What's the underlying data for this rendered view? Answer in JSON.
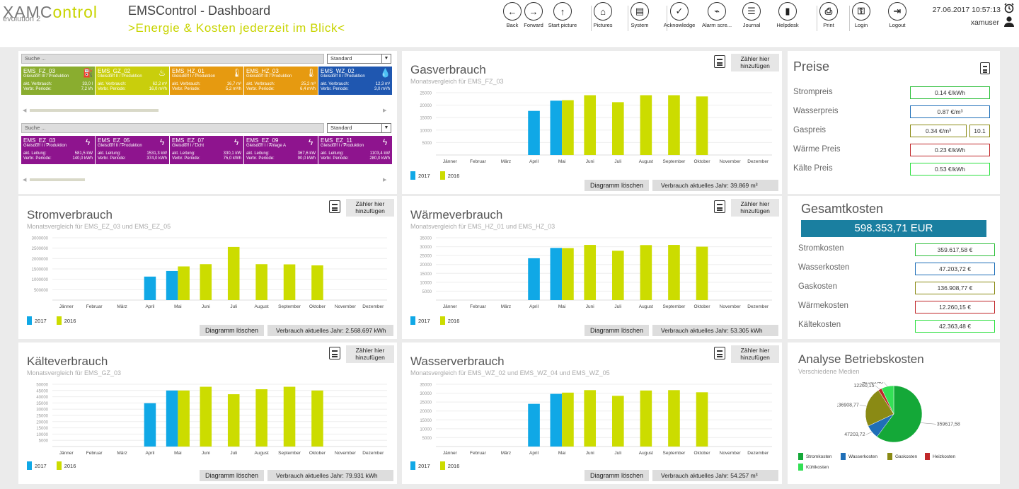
{
  "header": {
    "logo_a": "XAMC",
    "logo_b": "ontrol",
    "logo_sub": "evolution 2",
    "title": "EMSControl - Dashboard",
    "subtitle": ">Energie & Kosten jederzeit im Blick<",
    "datetime": "27.06.2017 10:57:13",
    "user": "xamuser",
    "toolbar": [
      {
        "label": "Back",
        "icon": "arrow-left-icon",
        "glyph": "←",
        "x": 710
      },
      {
        "label": "Forward",
        "icon": "arrow-right-icon",
        "glyph": "→",
        "x": 740
      },
      {
        "label": "Start picture",
        "icon": "arrow-up-icon",
        "glyph": "↑",
        "x": 781
      },
      {
        "label": "Pictures",
        "icon": "home-icon",
        "glyph": "⌂",
        "x": 838
      },
      {
        "label": "System",
        "icon": "system-icon",
        "glyph": "▤",
        "x": 890
      },
      {
        "label": "Acknowledge",
        "icon": "check-icon",
        "glyph": "✓",
        "x": 946
      },
      {
        "label": "Alarm scre...",
        "icon": "pulse-icon",
        "glyph": "⌁",
        "x": 999
      },
      {
        "label": "Journal",
        "icon": "journal-icon",
        "glyph": "☰",
        "x": 1048
      },
      {
        "label": "Helpdesk",
        "icon": "book-icon",
        "glyph": "▮",
        "x": 1099
      },
      {
        "label": "Print",
        "icon": "printer-icon",
        "glyph": "⎙",
        "x": 1157
      },
      {
        "label": "Login",
        "icon": "key-icon",
        "glyph": "⚿",
        "x": 1203
      },
      {
        "label": "Logout",
        "icon": "logout-icon",
        "glyph": "⇥",
        "x": 1254
      }
    ]
  },
  "meters": {
    "search_placeholder": "Suche ...",
    "select_value": "Standard",
    "row1": [
      {
        "name": "EMS_FZ_03",
        "loc": "Gleisdorf III / Produktion",
        "l1": "akt. Verbrauch:",
        "v1": "33,0 l",
        "l2": "Verbr. Periode:",
        "v2": "7,2 l/h",
        "color": "#8aad2f",
        "icon": "fuel-icon",
        "glyph": "⛽"
      },
      {
        "name": "EMS_GZ_02",
        "loc": "Gleisdorf II / Produktion",
        "l1": "akt. Verbrauch:",
        "v1": "62,2 m³",
        "l2": "Verbr. Periode:",
        "v2": "16,0 m³/h",
        "color": "#c9ce0c",
        "icon": "flame-icon",
        "glyph": "♨"
      },
      {
        "name": "EMS_HZ_01",
        "loc": "Gleisdorf I / Produktion",
        "l1": "akt. Verbrauch:",
        "v1": "16,7 m³",
        "l2": "Verbr. Periode:",
        "v2": "5,2 m³/h",
        "color": "#e69a10",
        "icon": "thermometer-icon",
        "glyph": "🌡"
      },
      {
        "name": "EMS_HZ_03",
        "loc": "Gleisdorf III / Produktion",
        "l1": "akt. Verbrauch:",
        "v1": "25,2 m³",
        "l2": "Verbr. Periode:",
        "v2": "6,4 m³/h",
        "color": "#e69a10",
        "icon": "thermometer-icon",
        "glyph": "🌡"
      },
      {
        "name": "EMS_WZ_02",
        "loc": "Gleisdorf II / Produktion",
        "l1": "akt. Verbrauch:",
        "v1": "12,3 m³",
        "l2": "Verbr. Periode:",
        "v2": "3,0 m³/h",
        "color": "#1f57b0",
        "icon": "droplet-icon",
        "glyph": "💧"
      }
    ],
    "row2": [
      {
        "name": "EMS_EZ_03",
        "loc": "Gleisdorf I / Produktion",
        "l1": "akt. Leitung:",
        "v1": "581,5 kW",
        "l2": "Verbr. Periode:",
        "v2": "140,0 kWh",
        "color": "#8e148e",
        "icon": "plug-icon",
        "glyph": "ϟ"
      },
      {
        "name": "EMS_EZ_05",
        "loc": "Gleisdorf II / Produktion",
        "l1": "akt. Leitung:",
        "v1": "1531,3 kW",
        "l2": "Verbr. Periode:",
        "v2": "374,0 kWh",
        "color": "#8e148e",
        "icon": "plug-icon",
        "glyph": "ϟ"
      },
      {
        "name": "EMS_EZ_07",
        "loc": "Gleisdorf I / Licht",
        "l1": "akt. Leitung:",
        "v1": "330,1 kW",
        "l2": "Verbr. Periode:",
        "v2": "75,0 kWh",
        "color": "#8e148e",
        "icon": "plug-icon",
        "glyph": "ϟ"
      },
      {
        "name": "EMS_EZ_09",
        "loc": "Gleisdorf I / Anlage A",
        "l1": "akt. Leitung:",
        "v1": "367,6 kW",
        "l2": "Verbr. Periode:",
        "v2": "90,0 kWh",
        "color": "#8e148e",
        "icon": "plug-icon",
        "glyph": "ϟ"
      },
      {
        "name": "EMS_EZ_11",
        "loc": "Gleisdorf I / Produktion",
        "l1": "akt. Leitung:",
        "v1": "1103,4 kW",
        "l2": "Verbr. Periode:",
        "v2": "280,0 kWh",
        "color": "#8e148e",
        "icon": "plug-icon",
        "glyph": "ϟ"
      }
    ]
  },
  "common": {
    "add_counter": "Zähler hier hinzufügen",
    "delete_chart": "Diagramm löschen",
    "legend_2017": "2017",
    "legend_2016": "2016",
    "color_2017": "#10a8e6",
    "color_2016": "#ccdc00",
    "months": [
      "Jänner",
      "Februar",
      "März",
      "April",
      "Mai",
      "Juni",
      "Juli",
      "August",
      "September",
      "Oktober",
      "November",
      "Dezember"
    ]
  },
  "charts": [
    {
      "key": "gas",
      "title": "Gasverbrauch",
      "subtitle": "Monatsvergleich für EMS_FZ_03",
      "footer": "Verbrauch aktuelles Jahr:  39.869 m³",
      "chart_data": {
        "type": "bar",
        "ylim": [
          0,
          25000
        ],
        "yticks": [
          5000,
          10000,
          15000,
          20000,
          25000
        ],
        "series": [
          {
            "name": "2017",
            "values": [
              null,
              null,
              null,
              17700,
              21800,
              null,
              null,
              null,
              null,
              null,
              null,
              null
            ]
          },
          {
            "name": "2016",
            "values": [
              null,
              null,
              null,
              null,
              22000,
              24000,
              21200,
              24000,
              24000,
              23500,
              null,
              null
            ]
          }
        ]
      }
    },
    {
      "key": "strom",
      "title": "Stromverbrauch",
      "subtitle": "Monatsvergleich für EMS_EZ_03 und EMS_EZ_05",
      "footer": "Verbrauch aktuelles Jahr: 2.568.697 kWh",
      "chart_data": {
        "type": "bar",
        "ylim": [
          0,
          3000000
        ],
        "yticks": [
          500000,
          1000000,
          1500000,
          2000000,
          2500000,
          3000000
        ],
        "series": [
          {
            "name": "2017",
            "values": [
              null,
              null,
              null,
              1130000,
              1400000,
              null,
              null,
              null,
              null,
              null,
              null,
              null
            ]
          },
          {
            "name": "2016",
            "values": [
              null,
              null,
              null,
              null,
              1620000,
              1730000,
              2560000,
              1730000,
              1720000,
              1670000,
              null,
              null
            ]
          }
        ]
      }
    },
    {
      "key": "waerme",
      "title": "Wärmeverbrauch",
      "subtitle": "Monatsvergleich für EMS_HZ_01 und EMS_HZ_03",
      "footer": "Verbrauch aktuelles Jahr:  53.305 kWh",
      "chart_data": {
        "type": "bar",
        "ylim": [
          0,
          35000
        ],
        "yticks": [
          5000,
          10000,
          15000,
          20000,
          25000,
          30000,
          35000
        ],
        "series": [
          {
            "name": "2017",
            "values": [
              null,
              null,
              null,
              23500,
              29300,
              null,
              null,
              null,
              null,
              null,
              null,
              null
            ]
          },
          {
            "name": "2016",
            "values": [
              null,
              null,
              null,
              null,
              29200,
              31000,
              27700,
              30900,
              31000,
              30000,
              null,
              null
            ]
          }
        ]
      }
    },
    {
      "key": "kaelte",
      "title": "Kälteverbrauch",
      "subtitle": "Monatsvergleich für EMS_GZ_03",
      "footer": "Verbrauch aktuelles Jahr:  79.931 kWh",
      "chart_data": {
        "type": "bar",
        "ylim": [
          0,
          50000
        ],
        "yticks": [
          5000,
          10000,
          15000,
          20000,
          25000,
          30000,
          35000,
          40000,
          45000,
          50000
        ],
        "series": [
          {
            "name": "2017",
            "values": [
              null,
              null,
              null,
              34800,
              45000,
              null,
              null,
              null,
              null,
              null,
              null,
              null
            ]
          },
          {
            "name": "2016",
            "values": [
              null,
              null,
              null,
              null,
              45000,
              48000,
              42000,
              46000,
              48000,
              45000,
              null,
              null
            ]
          }
        ]
      }
    },
    {
      "key": "wasser",
      "title": "Wasserverbrauch",
      "subtitle": "Monatsvergleich für EMS_WZ_02 und EMS_WZ_04 und EMS_WZ_05",
      "footer": "Verbrauch aktuelles Jahr:  54.257 m³",
      "chart_data": {
        "type": "bar",
        "ylim": [
          0,
          35000
        ],
        "yticks": [
          5000,
          10000,
          15000,
          20000,
          25000,
          30000,
          35000
        ],
        "series": [
          {
            "name": "2017",
            "values": [
              null,
              null,
              null,
              24000,
              29600,
              null,
              null,
              null,
              null,
              null,
              null,
              null
            ]
          },
          {
            "name": "2016",
            "values": [
              null,
              null,
              null,
              null,
              30300,
              31700,
              28500,
              31500,
              31700,
              30500,
              null,
              null
            ]
          }
        ]
      }
    }
  ],
  "preise": {
    "title": "Preise",
    "items": [
      {
        "label": "Strompreis",
        "value": "0.14 €/kWh",
        "color": "#2dbf3a"
      },
      {
        "label": "Wasserpreis",
        "value": "0.87 €/m³",
        "color": "#1f6fb8"
      },
      {
        "label": "Gaspreis",
        "value": "0.34 €/m³",
        "extra": "10.1",
        "color": "#8a8a14"
      },
      {
        "label": "Wärme Preis",
        "value": "0.23 €/kWh",
        "color": "#c0282a"
      },
      {
        "label": "Kälte Preis",
        "value": "0.53 €/kWh",
        "color": "#2de040"
      }
    ]
  },
  "gesamt": {
    "title": "Gesamtkosten",
    "total": "598.353,71 EUR",
    "items": [
      {
        "label": "Stromkosten",
        "value": "359.617,58 €",
        "color": "#2dbf3a"
      },
      {
        "label": "Wasserkosten",
        "value": "47.203,72 €",
        "color": "#1f6fb8"
      },
      {
        "label": "Gaskosten",
        "value": "136.908,77 €",
        "color": "#8a8a14"
      },
      {
        "label": "Wärmekosten",
        "value": "12.260,15 €",
        "color": "#c0282a"
      },
      {
        "label": "Kältekosten",
        "value": "42.363,48 €",
        "color": "#2de040"
      }
    ]
  },
  "analyse": {
    "title": "Analyse Betriebskosten",
    "subtitle": "Verschiedene Medien",
    "chart_data": {
      "type": "pie",
      "slices": [
        {
          "name": "Stromkosten",
          "value": 359617.58,
          "label": "359617,58",
          "color": "#14a838"
        },
        {
          "name": "Wasserkosten",
          "value": 47203.72,
          "label": "47203,72",
          "color": "#1f6fb8"
        },
        {
          "name": "Gaskosten",
          "value": 136908.77,
          "label": "136908,77",
          "color": "#8a8a14"
        },
        {
          "name": "Heizkosten",
          "value": 12260.15,
          "label": "12260,15",
          "color": "#c0282a"
        },
        {
          "name": "Kühlkosten",
          "value": 42363.48,
          "label": "42363,48",
          "color": "#33e055"
        }
      ]
    }
  }
}
